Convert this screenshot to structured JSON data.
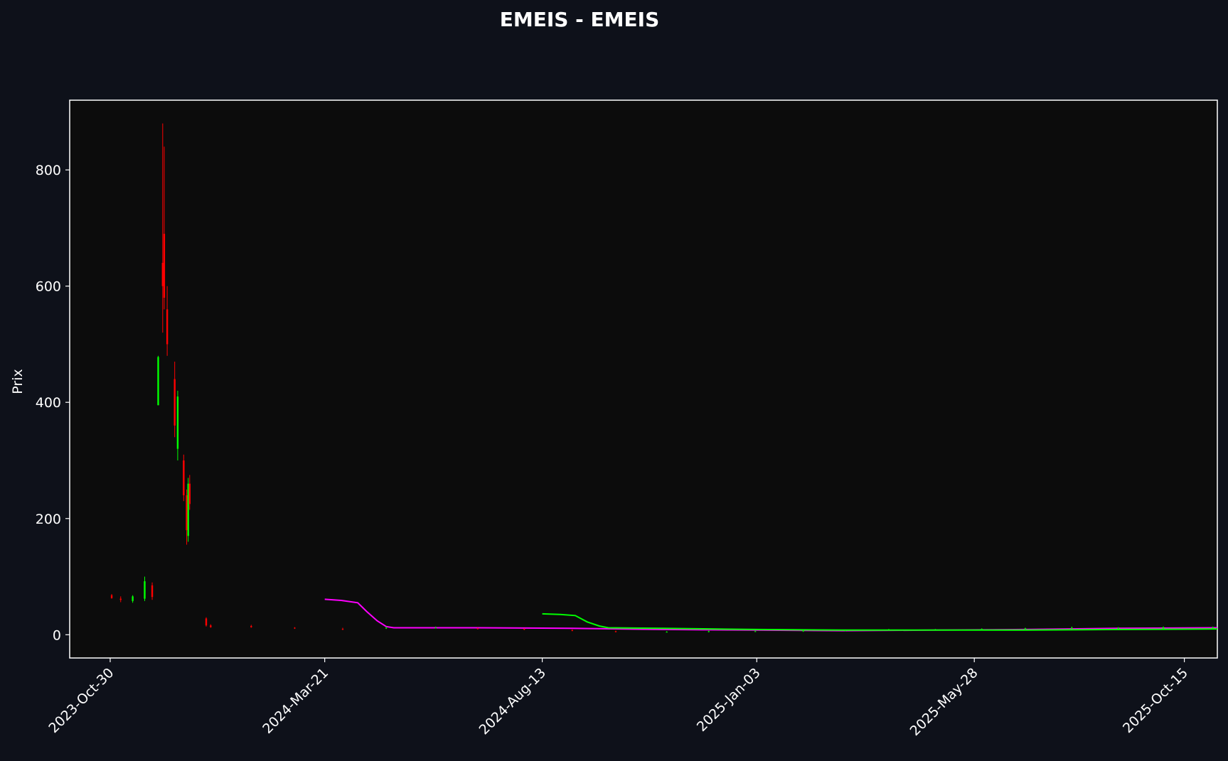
{
  "chart_data": {
    "type": "candlestick",
    "title": "EMEIS - EMEIS",
    "xlabel": "",
    "ylabel": "Prix",
    "x_axis": {
      "type": "date",
      "range": [
        "2023-10-03",
        "2025-11-06"
      ],
      "tick_labels": [
        "2023-Oct-30",
        "2024-Mar-21",
        "2024-Aug-13",
        "2025-Jan-03",
        "2025-May-28",
        "2025-Oct-15"
      ]
    },
    "y_axis": {
      "range": [
        -40,
        920
      ],
      "ticks": [
        0,
        200,
        400,
        600,
        800
      ]
    },
    "grid": false,
    "legend": "none",
    "colors": {
      "figure_background": "#0e111a",
      "axes_background": "#0c0c0c",
      "text": "#ffffff",
      "up_candle": "#00ff00",
      "down_candle": "#ff0000",
      "ma_magenta": "#ff00ff",
      "ma_green": "#00ff00"
    },
    "candles_sampled": [
      {
        "date": "2023-10-31",
        "open": 68,
        "high": 70,
        "low": 62,
        "close": 63
      },
      {
        "date": "2023-11-06",
        "open": 62,
        "high": 66,
        "low": 56,
        "close": 60
      },
      {
        "date": "2023-11-14",
        "open": 58,
        "high": 68,
        "low": 55,
        "close": 66
      },
      {
        "date": "2023-11-22",
        "open": 62,
        "high": 100,
        "low": 58,
        "close": 92
      },
      {
        "date": "2023-11-27",
        "open": 85,
        "high": 90,
        "low": 60,
        "close": 65
      },
      {
        "date": "2023-12-01",
        "open": 395,
        "high": 480,
        "low": 395,
        "close": 478
      },
      {
        "date": "2023-12-04",
        "open": 640,
        "high": 880,
        "low": 520,
        "close": 600
      },
      {
        "date": "2023-12-05",
        "open": 690,
        "high": 840,
        "low": 560,
        "close": 580
      },
      {
        "date": "2023-12-07",
        "open": 560,
        "high": 600,
        "low": 480,
        "close": 500
      },
      {
        "date": "2023-12-12",
        "open": 440,
        "high": 470,
        "low": 340,
        "close": 360
      },
      {
        "date": "2023-12-14",
        "open": 320,
        "high": 420,
        "low": 300,
        "close": 410
      },
      {
        "date": "2023-12-18",
        "open": 300,
        "high": 310,
        "low": 230,
        "close": 240
      },
      {
        "date": "2023-12-20",
        "open": 240,
        "high": 250,
        "low": 155,
        "close": 180
      },
      {
        "date": "2023-12-21",
        "open": 170,
        "high": 270,
        "low": 160,
        "close": 260
      },
      {
        "date": "2023-12-22",
        "open": 260,
        "high": 275,
        "low": 215,
        "close": 225
      },
      {
        "date": "2024-01-02",
        "open": 28,
        "high": 30,
        "low": 14,
        "close": 16
      },
      {
        "date": "2024-01-05",
        "open": 16,
        "high": 18,
        "low": 12,
        "close": 13
      },
      {
        "date": "2024-02-01",
        "open": 15,
        "high": 17,
        "low": 12,
        "close": 13
      },
      {
        "date": "2024-03-01",
        "open": 12,
        "high": 13,
        "low": 10,
        "close": 11
      },
      {
        "date": "2024-04-02",
        "open": 10,
        "high": 12,
        "low": 8,
        "close": 9
      },
      {
        "date": "2024-05-01",
        "open": 11,
        "high": 14,
        "low": 10,
        "close": 12
      },
      {
        "date": "2024-06-03",
        "open": 12,
        "high": 14,
        "low": 11,
        "close": 12
      },
      {
        "date": "2024-07-01",
        "open": 11,
        "high": 12,
        "low": 9,
        "close": 10
      },
      {
        "date": "2024-08-01",
        "open": 10,
        "high": 11,
        "low": 8,
        "close": 9
      },
      {
        "date": "2024-09-02",
        "open": 8,
        "high": 9,
        "low": 6,
        "close": 7
      },
      {
        "date": "2024-10-01",
        "open": 6,
        "high": 7,
        "low": 4,
        "close": 5
      },
      {
        "date": "2024-11-04",
        "open": 5,
        "high": 6,
        "low": 4,
        "close": 5
      },
      {
        "date": "2024-12-02",
        "open": 5,
        "high": 7,
        "low": 4,
        "close": 6
      },
      {
        "date": "2025-01-02",
        "open": 6,
        "high": 7,
        "low": 5,
        "close": 6
      },
      {
        "date": "2025-02-03",
        "open": 6,
        "high": 8,
        "low": 5,
        "close": 7
      },
      {
        "date": "2025-03-03",
        "open": 7,
        "high": 9,
        "low": 6,
        "close": 8
      },
      {
        "date": "2025-04-01",
        "open": 8,
        "high": 10,
        "low": 7,
        "close": 9
      },
      {
        "date": "2025-05-02",
        "open": 8,
        "high": 10,
        "low": 7,
        "close": 9
      },
      {
        "date": "2025-06-02",
        "open": 9,
        "high": 11,
        "low": 8,
        "close": 10
      },
      {
        "date": "2025-07-01",
        "open": 10,
        "high": 12,
        "low": 9,
        "close": 11
      },
      {
        "date": "2025-08-01",
        "open": 11,
        "high": 14,
        "low": 10,
        "close": 12
      },
      {
        "date": "2025-09-01",
        "open": 11,
        "high": 13,
        "low": 10,
        "close": 12
      },
      {
        "date": "2025-10-01",
        "open": 11,
        "high": 14,
        "low": 10,
        "close": 13
      },
      {
        "date": "2025-11-03",
        "open": 12,
        "high": 14,
        "low": 11,
        "close": 12
      }
    ],
    "lines": [
      {
        "color": "#ff00ff",
        "points": [
          [
            "2024-03-21",
            61
          ],
          [
            "2024-04-01",
            59
          ],
          [
            "2024-04-12",
            55
          ],
          [
            "2024-04-18",
            40
          ],
          [
            "2024-04-25",
            24
          ],
          [
            "2024-05-01",
            14
          ],
          [
            "2024-05-06",
            12
          ],
          [
            "2024-07-01",
            12
          ],
          [
            "2024-09-01",
            11
          ],
          [
            "2024-11-01",
            9
          ],
          [
            "2025-01-03",
            8
          ],
          [
            "2025-03-01",
            7
          ],
          [
            "2025-05-01",
            8
          ],
          [
            "2025-07-01",
            9
          ],
          [
            "2025-09-01",
            11
          ],
          [
            "2025-11-06",
            12
          ]
        ]
      },
      {
        "color": "#00ff00",
        "points": [
          [
            "2024-08-13",
            36
          ],
          [
            "2024-08-25",
            35
          ],
          [
            "2024-09-04",
            33
          ],
          [
            "2024-09-12",
            22
          ],
          [
            "2024-09-20",
            15
          ],
          [
            "2024-09-26",
            12
          ],
          [
            "2024-11-01",
            11
          ],
          [
            "2025-01-03",
            9
          ],
          [
            "2025-03-01",
            8
          ],
          [
            "2025-05-01",
            8
          ],
          [
            "2025-07-01",
            8
          ],
          [
            "2025-09-01",
            9
          ],
          [
            "2025-11-06",
            10
          ]
        ]
      }
    ]
  }
}
